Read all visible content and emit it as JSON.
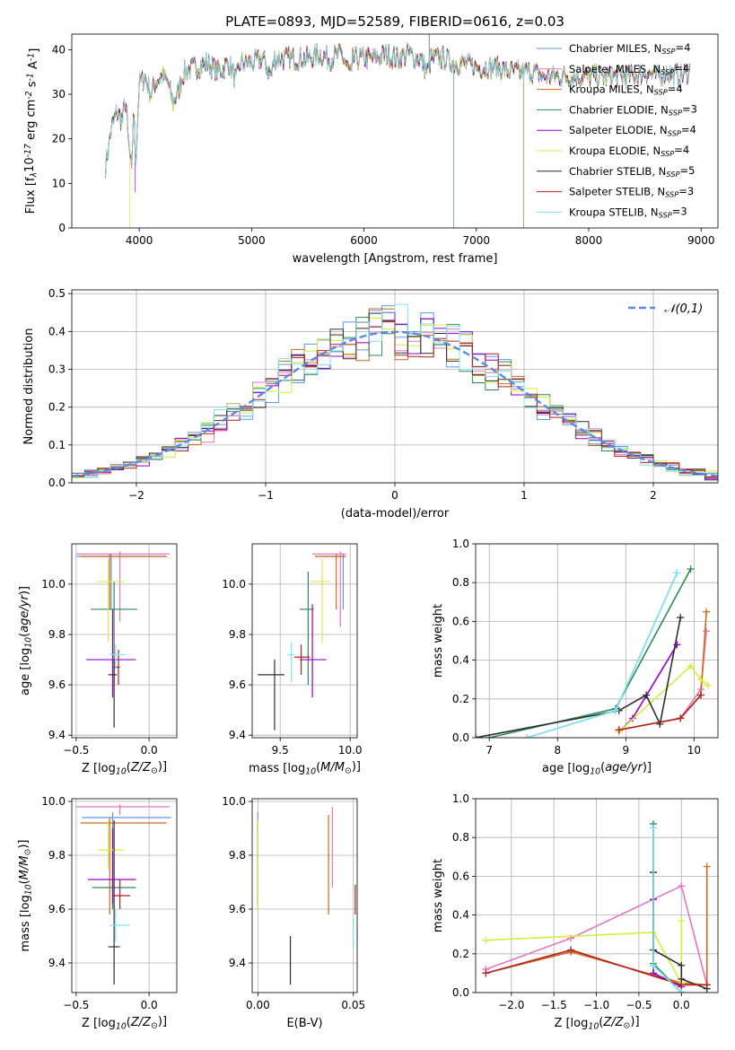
{
  "figure": {
    "title": "PLATE=0893, MJD=52589, FIBERID=0616, z=0.03"
  },
  "models": [
    {
      "label": "Chabrier MILES, N$_{SSP}$=4",
      "name": "Chabrier MILES",
      "n": "4",
      "color": "#6495ed"
    },
    {
      "label": "Salpeter MILES, N$_{SSP}$=4",
      "name": "Salpeter MILES",
      "n": "4",
      "color": "#e377c2"
    },
    {
      "label": "Kroupa MILES, N$_{SSP}$=4",
      "name": "Kroupa MILES",
      "n": "4",
      "color": "#d2691e"
    },
    {
      "label": "Chabrier ELODIE, N$_{SSP}$=3",
      "name": "Chabrier ELODIE",
      "n": "3",
      "color": "#2e8b57"
    },
    {
      "label": "Salpeter ELODIE, N$_{SSP}$=4",
      "name": "Salpeter ELODIE",
      "n": "4",
      "color": "#9400d3"
    },
    {
      "label": "Kroupa ELODIE, N$_{SSP}$=4",
      "name": "Kroupa ELODIE",
      "n": "4",
      "color": "#d4ed3f"
    },
    {
      "label": "Chabrier STELIB, N$_{SSP}$=5",
      "name": "Chabrier STELIB",
      "n": "5",
      "color": "#2f2f2f"
    },
    {
      "label": "Salpeter STELIB, N$_{SSP}$=3",
      "name": "Salpeter STELIB",
      "n": "3",
      "color": "#b22222"
    },
    {
      "label": "Kroupa STELIB, N$_{SSP}$=3",
      "name": "Kroupa STELIB",
      "n": "3",
      "color": "#7fe5f0"
    }
  ],
  "chart_data": [
    {
      "id": "spectrum",
      "type": "line",
      "xlabel": "wavelength [Angstrom, rest frame]",
      "ylabel": "Flux [f$_\\lambda$10$^{-17}$ erg cm$^{-2}$ s$^{-1}$ A$^{-1}$]",
      "xlim": [
        3400,
        9150
      ],
      "ylim": [
        0,
        43.5
      ],
      "xticks": [
        4000,
        5000,
        6000,
        7000,
        8000,
        9000
      ],
      "yticks": [
        0,
        10,
        20,
        30,
        40
      ],
      "grid": false,
      "legend": "top-right",
      "data_x": [
        3700,
        3750,
        3800,
        3850,
        3880,
        3900,
        3933,
        3950,
        3968,
        4000,
        4050,
        4102,
        4150,
        4200,
        4250,
        4300,
        4340,
        4400,
        4500,
        4600,
        4700,
        4800,
        4861,
        4900,
        5000,
        5100,
        5175,
        5200,
        5300,
        5400,
        5500,
        5600,
        5700,
        5800,
        5893,
        5900,
        6000,
        6100,
        6200,
        6300,
        6400,
        6500,
        6563,
        6600,
        6700,
        6800,
        6900,
        7000,
        7100,
        7200,
        7300,
        7400,
        7500,
        7600,
        7700,
        7800,
        7900,
        8000,
        8100,
        8200,
        8300,
        8400,
        8500,
        8600,
        8700,
        8800,
        8900
      ],
      "data_y": [
        14,
        22,
        26,
        24,
        29,
        20,
        12,
        28,
        14,
        32,
        34,
        30,
        33,
        34,
        33,
        28,
        30,
        35,
        36,
        37,
        35,
        37,
        33,
        37,
        37,
        38,
        34,
        38,
        38,
        38,
        38,
        39,
        38,
        39,
        34,
        38,
        38,
        38,
        39,
        38,
        39,
        38,
        35,
        38,
        38,
        37,
        37,
        36,
        36,
        36,
        35,
        35,
        35,
        34,
        34,
        34,
        34,
        34,
        34,
        34,
        34,
        34,
        35,
        34,
        35,
        34,
        35
      ],
      "glitches": [
        {
          "x": 3915,
          "y": 0,
          "model": 5
        },
        {
          "x": 3965,
          "y": 8,
          "model": 4
        },
        {
          "x": 6580,
          "y": 43.5,
          "model": 6
        },
        {
          "x": 6800,
          "y": 0,
          "model": 3
        },
        {
          "x": 7420,
          "y": 0,
          "model": 2
        }
      ]
    },
    {
      "id": "residuals",
      "type": "histogram",
      "xlabel": "(data-model)/error",
      "ylabel": "Normed distribution",
      "xlim": [
        -2.5,
        2.5
      ],
      "ylim": [
        0,
        0.51
      ],
      "xticks": [
        -2,
        -1,
        0,
        1,
        2
      ],
      "xtick_labels": [
        "−2",
        "−1",
        "0",
        "1",
        "2"
      ],
      "yticks": [
        0.0,
        0.1,
        0.2,
        0.3,
        0.4,
        0.5
      ],
      "grid": true,
      "legend": "top-right",
      "curve_label": "$\\mathcal{N}(0,1)$",
      "curve_color": "#5b8be0",
      "bin_width": 0.1
    },
    {
      "id": "age_vs_Z",
      "type": "errorbar",
      "xlabel": "Z [log$_{10}$($Z/Z_\\odot$)]",
      "ylabel": "age  [log$_{10}$($age/yr$)]",
      "xlim": [
        -0.53,
        0.19
      ],
      "ylim": [
        9.39,
        10.16
      ],
      "xticks": [
        -0.5,
        0.0
      ],
      "xtick_labels": [
        "−0.5",
        "0.0"
      ],
      "yticks": [
        9.4,
        9.6,
        9.8,
        10.0
      ],
      "grid": true,
      "points": [
        {
          "m": 0,
          "x": -0.26,
          "y": 10.11,
          "xe": [
            -0.5,
            0.12
          ],
          "ye": [
            9.9,
            10.12
          ]
        },
        {
          "m": 1,
          "x": -0.2,
          "y": 10.12,
          "xe": [
            -0.5,
            0.14
          ],
          "ye": [
            9.85,
            10.13
          ]
        },
        {
          "m": 2,
          "x": -0.27,
          "y": 10.11,
          "xe": [
            -0.47,
            0.12
          ],
          "ye": [
            9.9,
            10.12
          ]
        },
        {
          "m": 3,
          "x": -0.24,
          "y": 9.9,
          "xe": [
            -0.4,
            -0.08
          ],
          "ye": [
            9.6,
            10.01
          ]
        },
        {
          "m": 4,
          "x": -0.25,
          "y": 9.7,
          "xe": [
            -0.43,
            -0.09
          ],
          "ye": [
            9.55,
            9.9
          ]
        },
        {
          "m": 5,
          "x": -0.28,
          "y": 10.01,
          "xe": [
            -0.36,
            -0.17
          ],
          "ye": [
            9.77,
            10.1
          ]
        },
        {
          "m": 6,
          "x": -0.24,
          "y": 9.64,
          "xe": [
            -0.28,
            -0.22
          ],
          "ye": [
            9.43,
            9.7
          ]
        },
        {
          "m": 7,
          "x": -0.21,
          "y": 9.67,
          "xe": [
            -0.25,
            -0.2
          ],
          "ye": [
            9.6,
            9.74
          ]
        },
        {
          "m": 8,
          "x": -0.23,
          "y": 9.72,
          "xe": [
            -0.27,
            -0.16
          ],
          "ye": [
            9.66,
            9.76
          ]
        }
      ]
    },
    {
      "id": "age_vs_mass",
      "type": "errorbar",
      "xlabel": "mass [log$_{10}$($M/M_\\odot$)]",
      "ylabel": "",
      "xlim": [
        9.3,
        10.05
      ],
      "ylim": [
        9.39,
        10.16
      ],
      "xticks": [
        9.5,
        10.0
      ],
      "xtick_labels": [
        "9.5",
        "10.0"
      ],
      "yticks": [
        9.4,
        9.6,
        9.8,
        10.0
      ],
      "grid": true,
      "points": [
        {
          "m": 0,
          "x": 9.95,
          "y": 10.11,
          "xe": [
            9.75,
            9.97
          ],
          "ye": [
            9.9,
            10.12
          ]
        },
        {
          "m": 1,
          "x": 9.93,
          "y": 10.12,
          "xe": [
            9.73,
            9.97
          ],
          "ye": [
            9.83,
            10.13
          ]
        },
        {
          "m": 2,
          "x": 9.9,
          "y": 10.11,
          "xe": [
            9.75,
            9.97
          ],
          "ye": [
            9.9,
            10.12
          ]
        },
        {
          "m": 3,
          "x": 9.7,
          "y": 9.9,
          "xe": [
            9.64,
            9.74
          ],
          "ye": [
            9.6,
            10.05
          ]
        },
        {
          "m": 4,
          "x": 9.73,
          "y": 9.7,
          "xe": [
            9.64,
            9.83
          ],
          "ye": [
            9.55,
            9.92
          ]
        },
        {
          "m": 5,
          "x": 9.8,
          "y": 10.01,
          "xe": [
            9.72,
            9.86
          ],
          "ye": [
            9.77,
            10.1
          ]
        },
        {
          "m": 6,
          "x": 9.46,
          "y": 9.64,
          "xe": [
            9.34,
            9.53
          ],
          "ye": [
            9.42,
            9.7
          ]
        },
        {
          "m": 7,
          "x": 9.65,
          "y": 9.71,
          "xe": [
            9.6,
            9.71
          ],
          "ye": [
            9.64,
            9.76
          ]
        },
        {
          "m": 8,
          "x": 9.58,
          "y": 9.72,
          "xe": [
            9.55,
            9.6
          ],
          "ye": [
            9.61,
            9.77
          ]
        }
      ]
    },
    {
      "id": "weight_vs_age",
      "type": "line",
      "xlabel": "age  [log$_{10}$($age/yr$)]",
      "ylabel": "mass weight",
      "xlim": [
        6.8,
        10.35
      ],
      "ylim": [
        0,
        1.0
      ],
      "xticks": [
        7,
        8,
        9,
        10
      ],
      "yticks": [
        0.0,
        0.2,
        0.4,
        0.6,
        0.8,
        1.0
      ],
      "grid": true,
      "series": [
        {
          "m": 0,
          "x": [
            7.55,
            8.85,
            9.75
          ],
          "y": [
            0.0,
            0.14,
            0.85
          ]
        },
        {
          "m": 1,
          "x": [
            8.9,
            9.8,
            10.1,
            10.18
          ],
          "y": [
            0.04,
            0.1,
            0.25,
            0.55
          ]
        },
        {
          "m": 2,
          "x": [
            8.9,
            9.8,
            10.1,
            10.18
          ],
          "y": [
            0.04,
            0.1,
            0.22,
            0.65
          ]
        },
        {
          "m": 3,
          "x": [
            7.0,
            8.85,
            9.95
          ],
          "y": [
            0.0,
            0.15,
            0.87
          ]
        },
        {
          "m": 4,
          "x": [
            8.9,
            9.1,
            9.75
          ],
          "y": [
            0.03,
            0.1,
            0.48
          ]
        },
        {
          "m": 5,
          "x": [
            8.9,
            9.95,
            10.1,
            10.2
          ],
          "y": [
            0.03,
            0.37,
            0.3,
            0.27
          ]
        },
        {
          "m": 6,
          "x": [
            6.8,
            8.9,
            9.3,
            9.5,
            9.8
          ],
          "y": [
            0.0,
            0.14,
            0.22,
            0.07,
            0.62
          ]
        },
        {
          "m": 7,
          "x": [
            8.9,
            9.8,
            10.1
          ],
          "y": [
            0.04,
            0.1,
            0.22
          ]
        },
        {
          "m": 8,
          "x": [
            7.55,
            8.85,
            9.75
          ],
          "y": [
            0.0,
            0.14,
            0.85
          ]
        }
      ]
    },
    {
      "id": "mass_vs_Z",
      "type": "errorbar",
      "xlabel": "Z [log$_{10}$($Z/Z_\\odot$)]",
      "ylabel": "mass [log$_{10}$($M/M_\\odot$)]",
      "xlim": [
        -0.53,
        0.19
      ],
      "ylim": [
        9.29,
        10.01
      ],
      "xticks": [
        -0.5,
        0.0
      ],
      "xtick_labels": [
        "−0.5",
        "0.0"
      ],
      "yticks": [
        9.4,
        9.6,
        9.8,
        10.0
      ],
      "grid": true,
      "points": [
        {
          "m": 0,
          "x": -0.25,
          "y": 9.94,
          "xe": [
            -0.46,
            0.15
          ],
          "ye": [
            9.9,
            9.96
          ]
        },
        {
          "m": 1,
          "x": -0.2,
          "y": 9.98,
          "xe": [
            -0.5,
            0.14
          ],
          "ye": [
            9.95,
            9.99
          ]
        },
        {
          "m": 2,
          "x": -0.27,
          "y": 9.92,
          "xe": [
            -0.47,
            0.12
          ],
          "ye": [
            9.58,
            9.94
          ]
        },
        {
          "m": 3,
          "x": -0.25,
          "y": 9.68,
          "xe": [
            -0.39,
            -0.09
          ],
          "ye": [
            9.6,
            9.9
          ]
        },
        {
          "m": 4,
          "x": -0.25,
          "y": 9.71,
          "xe": [
            -0.42,
            -0.09
          ],
          "ye": [
            9.62,
            9.9
          ]
        },
        {
          "m": 5,
          "x": -0.28,
          "y": 9.82,
          "xe": [
            -0.35,
            -0.17
          ],
          "ye": [
            9.75,
            9.93
          ]
        },
        {
          "m": 6,
          "x": -0.24,
          "y": 9.46,
          "xe": [
            -0.28,
            -0.2
          ],
          "ye": [
            9.32,
            9.93
          ]
        },
        {
          "m": 7,
          "x": -0.2,
          "y": 9.65,
          "xe": [
            -0.25,
            -0.13
          ],
          "ye": [
            9.6,
            9.71
          ]
        },
        {
          "m": 8,
          "x": -0.23,
          "y": 9.54,
          "xe": [
            -0.27,
            -0.13
          ],
          "ye": [
            9.48,
            9.6
          ]
        }
      ]
    },
    {
      "id": "mass_vs_ebv",
      "type": "errorbar",
      "xlabel": "E(B-V)",
      "ylabel": "",
      "xlim": [
        -0.003,
        0.052
      ],
      "ylim": [
        9.29,
        10.01
      ],
      "xticks": [
        0.0,
        0.05
      ],
      "xtick_labels": [
        "0.00",
        "0.05"
      ],
      "yticks": [
        9.4,
        9.6,
        9.8,
        10.0
      ],
      "grid": true,
      "points": [
        {
          "m": 0,
          "x": 0.0,
          "y": 9.94,
          "xe": [
            0.0,
            0.0
          ],
          "ye": [
            9.9,
            9.96
          ]
        },
        {
          "m": 1,
          "x": 0.039,
          "y": 9.96,
          "xe": [
            0.039,
            0.039
          ],
          "ye": [
            9.68,
            9.98
          ]
        },
        {
          "m": 2,
          "x": 0.037,
          "y": 9.92,
          "xe": [
            0.037,
            0.037
          ],
          "ye": [
            9.58,
            9.95
          ]
        },
        {
          "m": 3,
          "x": 0.0,
          "y": 9.88,
          "xe": [
            0.0,
            0.0
          ],
          "ye": [
            9.6,
            9.92
          ]
        },
        {
          "m": 4,
          "x": 0.0,
          "y": 9.91,
          "xe": [
            0.0,
            0.0
          ],
          "ye": [
            9.62,
            9.93
          ]
        },
        {
          "m": 5,
          "x": 0.0,
          "y": 9.82,
          "xe": [
            0.0,
            0.0
          ],
          "ye": [
            9.6,
            9.93
          ]
        },
        {
          "m": 6,
          "x": 0.017,
          "y": 9.4,
          "xe": [
            0.017,
            0.017
          ],
          "ye": [
            9.32,
            9.5
          ]
        },
        {
          "m": 7,
          "x": 0.051,
          "y": 9.65,
          "xe": [
            0.051,
            0.051
          ],
          "ye": [
            9.58,
            9.69
          ]
        },
        {
          "m": 8,
          "x": 0.05,
          "y": 9.52,
          "xe": [
            0.05,
            0.05
          ],
          "ye": [
            9.46,
            9.56
          ]
        }
      ]
    },
    {
      "id": "weight_vs_Z",
      "type": "line",
      "xlabel": "Z [log$_{10}$($Z/Z_\\odot$)]",
      "ylabel": "mass weight",
      "xlim": [
        -2.42,
        0.43
      ],
      "ylim": [
        0,
        1.0
      ],
      "xticks": [
        -2.0,
        -1.5,
        -1.0,
        -0.5,
        0.0
      ],
      "xtick_labels": [
        "−2.0",
        "−1.5",
        "−1.0",
        "−0.5",
        "0.0"
      ],
      "yticks": [
        0.0,
        0.2,
        0.4,
        0.6,
        0.8,
        1.0
      ],
      "grid": true,
      "series": [
        {
          "m": 0,
          "x": [
            -0.33,
            -0.33,
            0.0
          ],
          "y": [
            0.85,
            0.14,
            0.0
          ]
        },
        {
          "m": 1,
          "x": [
            -2.3,
            -1.3,
            0.0,
            0.3
          ],
          "y": [
            0.12,
            0.28,
            0.55,
            0.04
          ]
        },
        {
          "m": 2,
          "x": [
            -2.3,
            -1.3,
            0.0,
            0.3,
            0.3
          ],
          "y": [
            0.1,
            0.21,
            0.05,
            0.04,
            0.65
          ]
        },
        {
          "m": 3,
          "x": [
            -0.33,
            -0.33,
            0.0
          ],
          "y": [
            0.87,
            0.15,
            0.0
          ]
        },
        {
          "m": 4,
          "x": [
            -0.33,
            -0.33,
            0.0
          ],
          "y": [
            0.48,
            0.1,
            0.03
          ]
        },
        {
          "m": 5,
          "x": [
            -2.3,
            -0.33,
            0.0,
            0.0
          ],
          "y": [
            0.27,
            0.31,
            0.05,
            0.37
          ]
        },
        {
          "m": 6,
          "x": [
            -0.33,
            -0.33,
            0.0,
            0.0,
            0.3
          ],
          "y": [
            0.62,
            0.22,
            0.14,
            0.07,
            0.02
          ]
        },
        {
          "m": 7,
          "x": [
            -2.3,
            -1.3,
            0.0,
            0.3
          ],
          "y": [
            0.1,
            0.22,
            0.04,
            0.04
          ]
        },
        {
          "m": 8,
          "x": [
            -0.33,
            -0.33,
            0.0
          ],
          "y": [
            0.85,
            0.14,
            0.0
          ]
        }
      ]
    }
  ]
}
